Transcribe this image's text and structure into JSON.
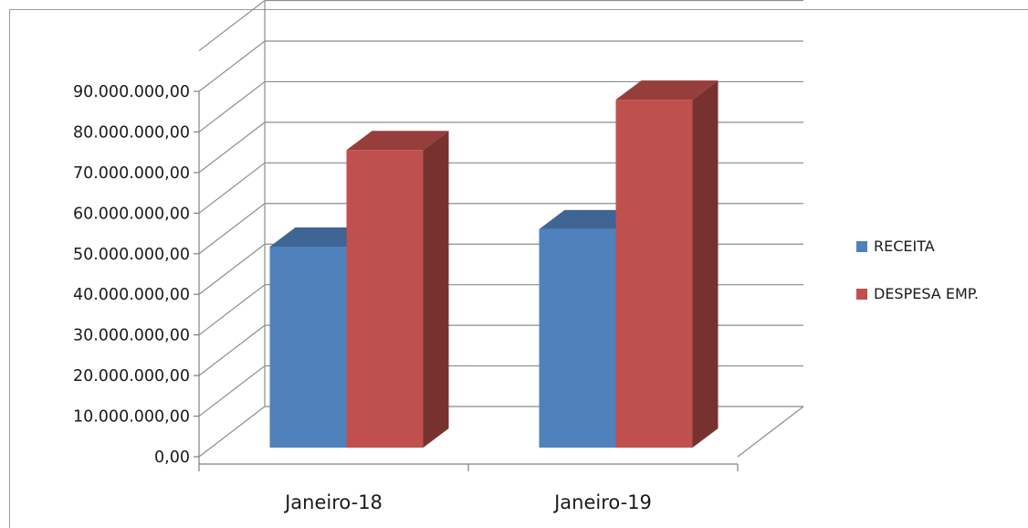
{
  "chart_data": {
    "type": "bar",
    "style": "3d-clustered-column",
    "title": "",
    "xlabel": "",
    "ylabel": "",
    "categories": [
      "Janeiro-18",
      "Janeiro-19"
    ],
    "series": [
      {
        "name": "RECEITA",
        "color": "#4f81bd",
        "values": [
          49500000,
          53800000
        ]
      },
      {
        "name": "DESPESA EMP.",
        "color": "#c0504d",
        "values": [
          73300000,
          85700000
        ]
      }
    ],
    "ylim": [
      0,
      90000000
    ],
    "y_ticks": [
      {
        "value": 0,
        "label": "0,00"
      },
      {
        "value": 10000000,
        "label": "10.000.000,00"
      },
      {
        "value": 20000000,
        "label": "20.000.000,00"
      },
      {
        "value": 30000000,
        "label": "30.000.000,00"
      },
      {
        "value": 40000000,
        "label": "40.000.000,00"
      },
      {
        "value": 50000000,
        "label": "50.000.000,00"
      },
      {
        "value": 60000000,
        "label": "60.000.000,00"
      },
      {
        "value": 70000000,
        "label": "70.000.000,00"
      },
      {
        "value": 80000000,
        "label": "80.000.000,00"
      },
      {
        "value": 90000000,
        "label": "90.000.000,00"
      }
    ],
    "grid": true,
    "legend_position": "right"
  }
}
